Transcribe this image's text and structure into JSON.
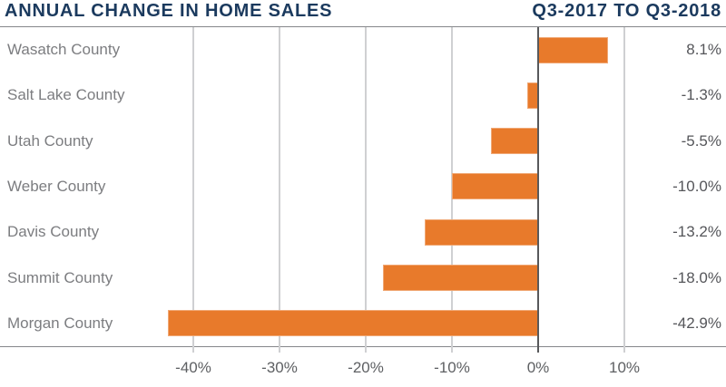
{
  "header": {
    "title": "ANNUAL CHANGE IN HOME SALES",
    "period": "Q3-2017 TO Q3-2018"
  },
  "colors": {
    "bar": "#E87A2B",
    "navy": "#1B3A5E",
    "county_label": "#7C7D80",
    "value_label": "#55565A",
    "axis_label": "#5E6063",
    "gridline": "#CFD0D2",
    "zero_line": "#58595B",
    "border": "#85878A"
  },
  "chart_data": {
    "type": "bar",
    "orientation": "horizontal",
    "title": "ANNUAL CHANGE IN HOME SALES",
    "subtitle": "Q3-2017 TO Q3-2018",
    "categories": [
      "Wasatch County",
      "Salt Lake County",
      "Utah County",
      "Weber County",
      "Davis County",
      "Summit County",
      "Morgan County"
    ],
    "values": [
      8.1,
      -1.3,
      -5.5,
      -10.0,
      -13.2,
      -18.0,
      -42.9
    ],
    "value_labels": [
      "8.1%",
      "-1.3%",
      "-5.5%",
      "-10.0%",
      "-13.2%",
      "-18.0%",
      "-42.9%"
    ],
    "bar_color": "#E87A2B",
    "xlabel": "",
    "ylabel": "",
    "x_axis": {
      "ticks": [
        -40,
        -30,
        -20,
        -10,
        0,
        10
      ],
      "tick_labels": [
        "-40%",
        "-30%",
        "-20%",
        "-10%",
        "0%",
        "10%"
      ],
      "min": -50,
      "max": 15
    },
    "grid": true,
    "zero_baseline": true,
    "legend": "none",
    "value_labels_position": "right-edge"
  }
}
